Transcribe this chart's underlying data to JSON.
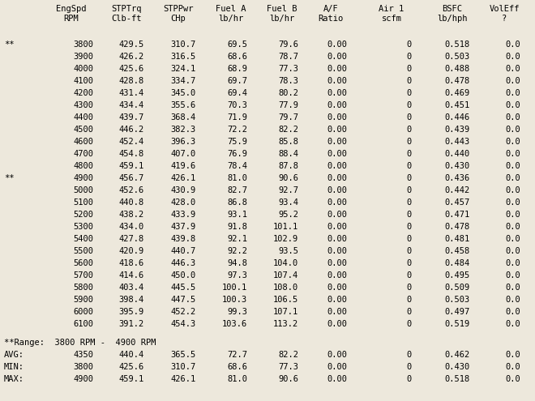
{
  "headers": [
    [
      "EngSpd",
      "STPTrq",
      "STPPwr",
      "Fuel A",
      "Fuel B",
      "A/F",
      "Air 1",
      "BSFC",
      "VolEff"
    ],
    [
      "RPM",
      "Clb-ft",
      "CHp",
      "lb/hr",
      "lb/hr",
      "Ratio",
      "scfm",
      "lb/hph",
      "?"
    ]
  ],
  "rows": [
    [
      "**",
      "3800",
      "429.5",
      "310.7",
      "69.5",
      "79.6",
      "0.00",
      "0",
      "0.518",
      "0.0"
    ],
    [
      "",
      "3900",
      "426.2",
      "316.5",
      "68.6",
      "78.7",
      "0.00",
      "0",
      "0.503",
      "0.0"
    ],
    [
      "",
      "4000",
      "425.6",
      "324.1",
      "68.9",
      "77.3",
      "0.00",
      "0",
      "0.488",
      "0.0"
    ],
    [
      "",
      "4100",
      "428.8",
      "334.7",
      "69.7",
      "78.3",
      "0.00",
      "0",
      "0.478",
      "0.0"
    ],
    [
      "",
      "4200",
      "431.4",
      "345.0",
      "69.4",
      "80.2",
      "0.00",
      "0",
      "0.469",
      "0.0"
    ],
    [
      "",
      "4300",
      "434.4",
      "355.6",
      "70.3",
      "77.9",
      "0.00",
      "0",
      "0.451",
      "0.0"
    ],
    [
      "",
      "4400",
      "439.7",
      "368.4",
      "71.9",
      "79.7",
      "0.00",
      "0",
      "0.446",
      "0.0"
    ],
    [
      "",
      "4500",
      "446.2",
      "382.3",
      "72.2",
      "82.2",
      "0.00",
      "0",
      "0.439",
      "0.0"
    ],
    [
      "",
      "4600",
      "452.4",
      "396.3",
      "75.9",
      "85.8",
      "0.00",
      "0",
      "0.443",
      "0.0"
    ],
    [
      "",
      "4700",
      "454.8",
      "407.0",
      "76.9",
      "88.4",
      "0.00",
      "0",
      "0.440",
      "0.0"
    ],
    [
      "",
      "4800",
      "459.1",
      "419.6",
      "78.4",
      "87.8",
      "0.00",
      "0",
      "0.430",
      "0.0"
    ],
    [
      "**",
      "4900",
      "456.7",
      "426.1",
      "81.0",
      "90.6",
      "0.00",
      "0",
      "0.436",
      "0.0"
    ],
    [
      "",
      "5000",
      "452.6",
      "430.9",
      "82.7",
      "92.7",
      "0.00",
      "0",
      "0.442",
      "0.0"
    ],
    [
      "",
      "5100",
      "440.8",
      "428.0",
      "86.8",
      "93.4",
      "0.00",
      "0",
      "0.457",
      "0.0"
    ],
    [
      "",
      "5200",
      "438.2",
      "433.9",
      "93.1",
      "95.2",
      "0.00",
      "0",
      "0.471",
      "0.0"
    ],
    [
      "",
      "5300",
      "434.0",
      "437.9",
      "91.8",
      "101.1",
      "0.00",
      "0",
      "0.478",
      "0.0"
    ],
    [
      "",
      "5400",
      "427.8",
      "439.8",
      "92.1",
      "102.9",
      "0.00",
      "0",
      "0.481",
      "0.0"
    ],
    [
      "",
      "5500",
      "420.9",
      "440.7",
      "92.2",
      "93.5",
      "0.00",
      "0",
      "0.458",
      "0.0"
    ],
    [
      "",
      "5600",
      "418.6",
      "446.3",
      "94.8",
      "104.0",
      "0.00",
      "0",
      "0.484",
      "0.0"
    ],
    [
      "",
      "5700",
      "414.6",
      "450.0",
      "97.3",
      "107.4",
      "0.00",
      "0",
      "0.495",
      "0.0"
    ],
    [
      "",
      "5800",
      "403.4",
      "445.5",
      "100.1",
      "108.0",
      "0.00",
      "0",
      "0.509",
      "0.0"
    ],
    [
      "",
      "5900",
      "398.4",
      "447.5",
      "100.3",
      "106.5",
      "0.00",
      "0",
      "0.503",
      "0.0"
    ],
    [
      "",
      "6000",
      "395.9",
      "452.2",
      "99.3",
      "107.1",
      "0.00",
      "0",
      "0.497",
      "0.0"
    ],
    [
      "",
      "6100",
      "391.2",
      "454.3",
      "103.6",
      "113.2",
      "0.00",
      "0",
      "0.519",
      "0.0"
    ]
  ],
  "footer_range": "**Range:  3800 RPM -  4900 RPM",
  "footer_rows": [
    [
      "AVG:",
      "4350",
      "440.4",
      "365.5",
      "72.7",
      "82.2",
      "0.00",
      "0",
      "0.462",
      "0.0"
    ],
    [
      "MIN:",
      "3800",
      "425.6",
      "310.7",
      "68.6",
      "77.3",
      "0.00",
      "0",
      "0.430",
      "0.0"
    ],
    [
      "MAX:",
      "4900",
      "459.1",
      "426.1",
      "81.0",
      "90.6",
      "0.00",
      "0",
      "0.518",
      "0.0"
    ]
  ],
  "bg_color": "#ede8dc",
  "font_size": 7.5
}
